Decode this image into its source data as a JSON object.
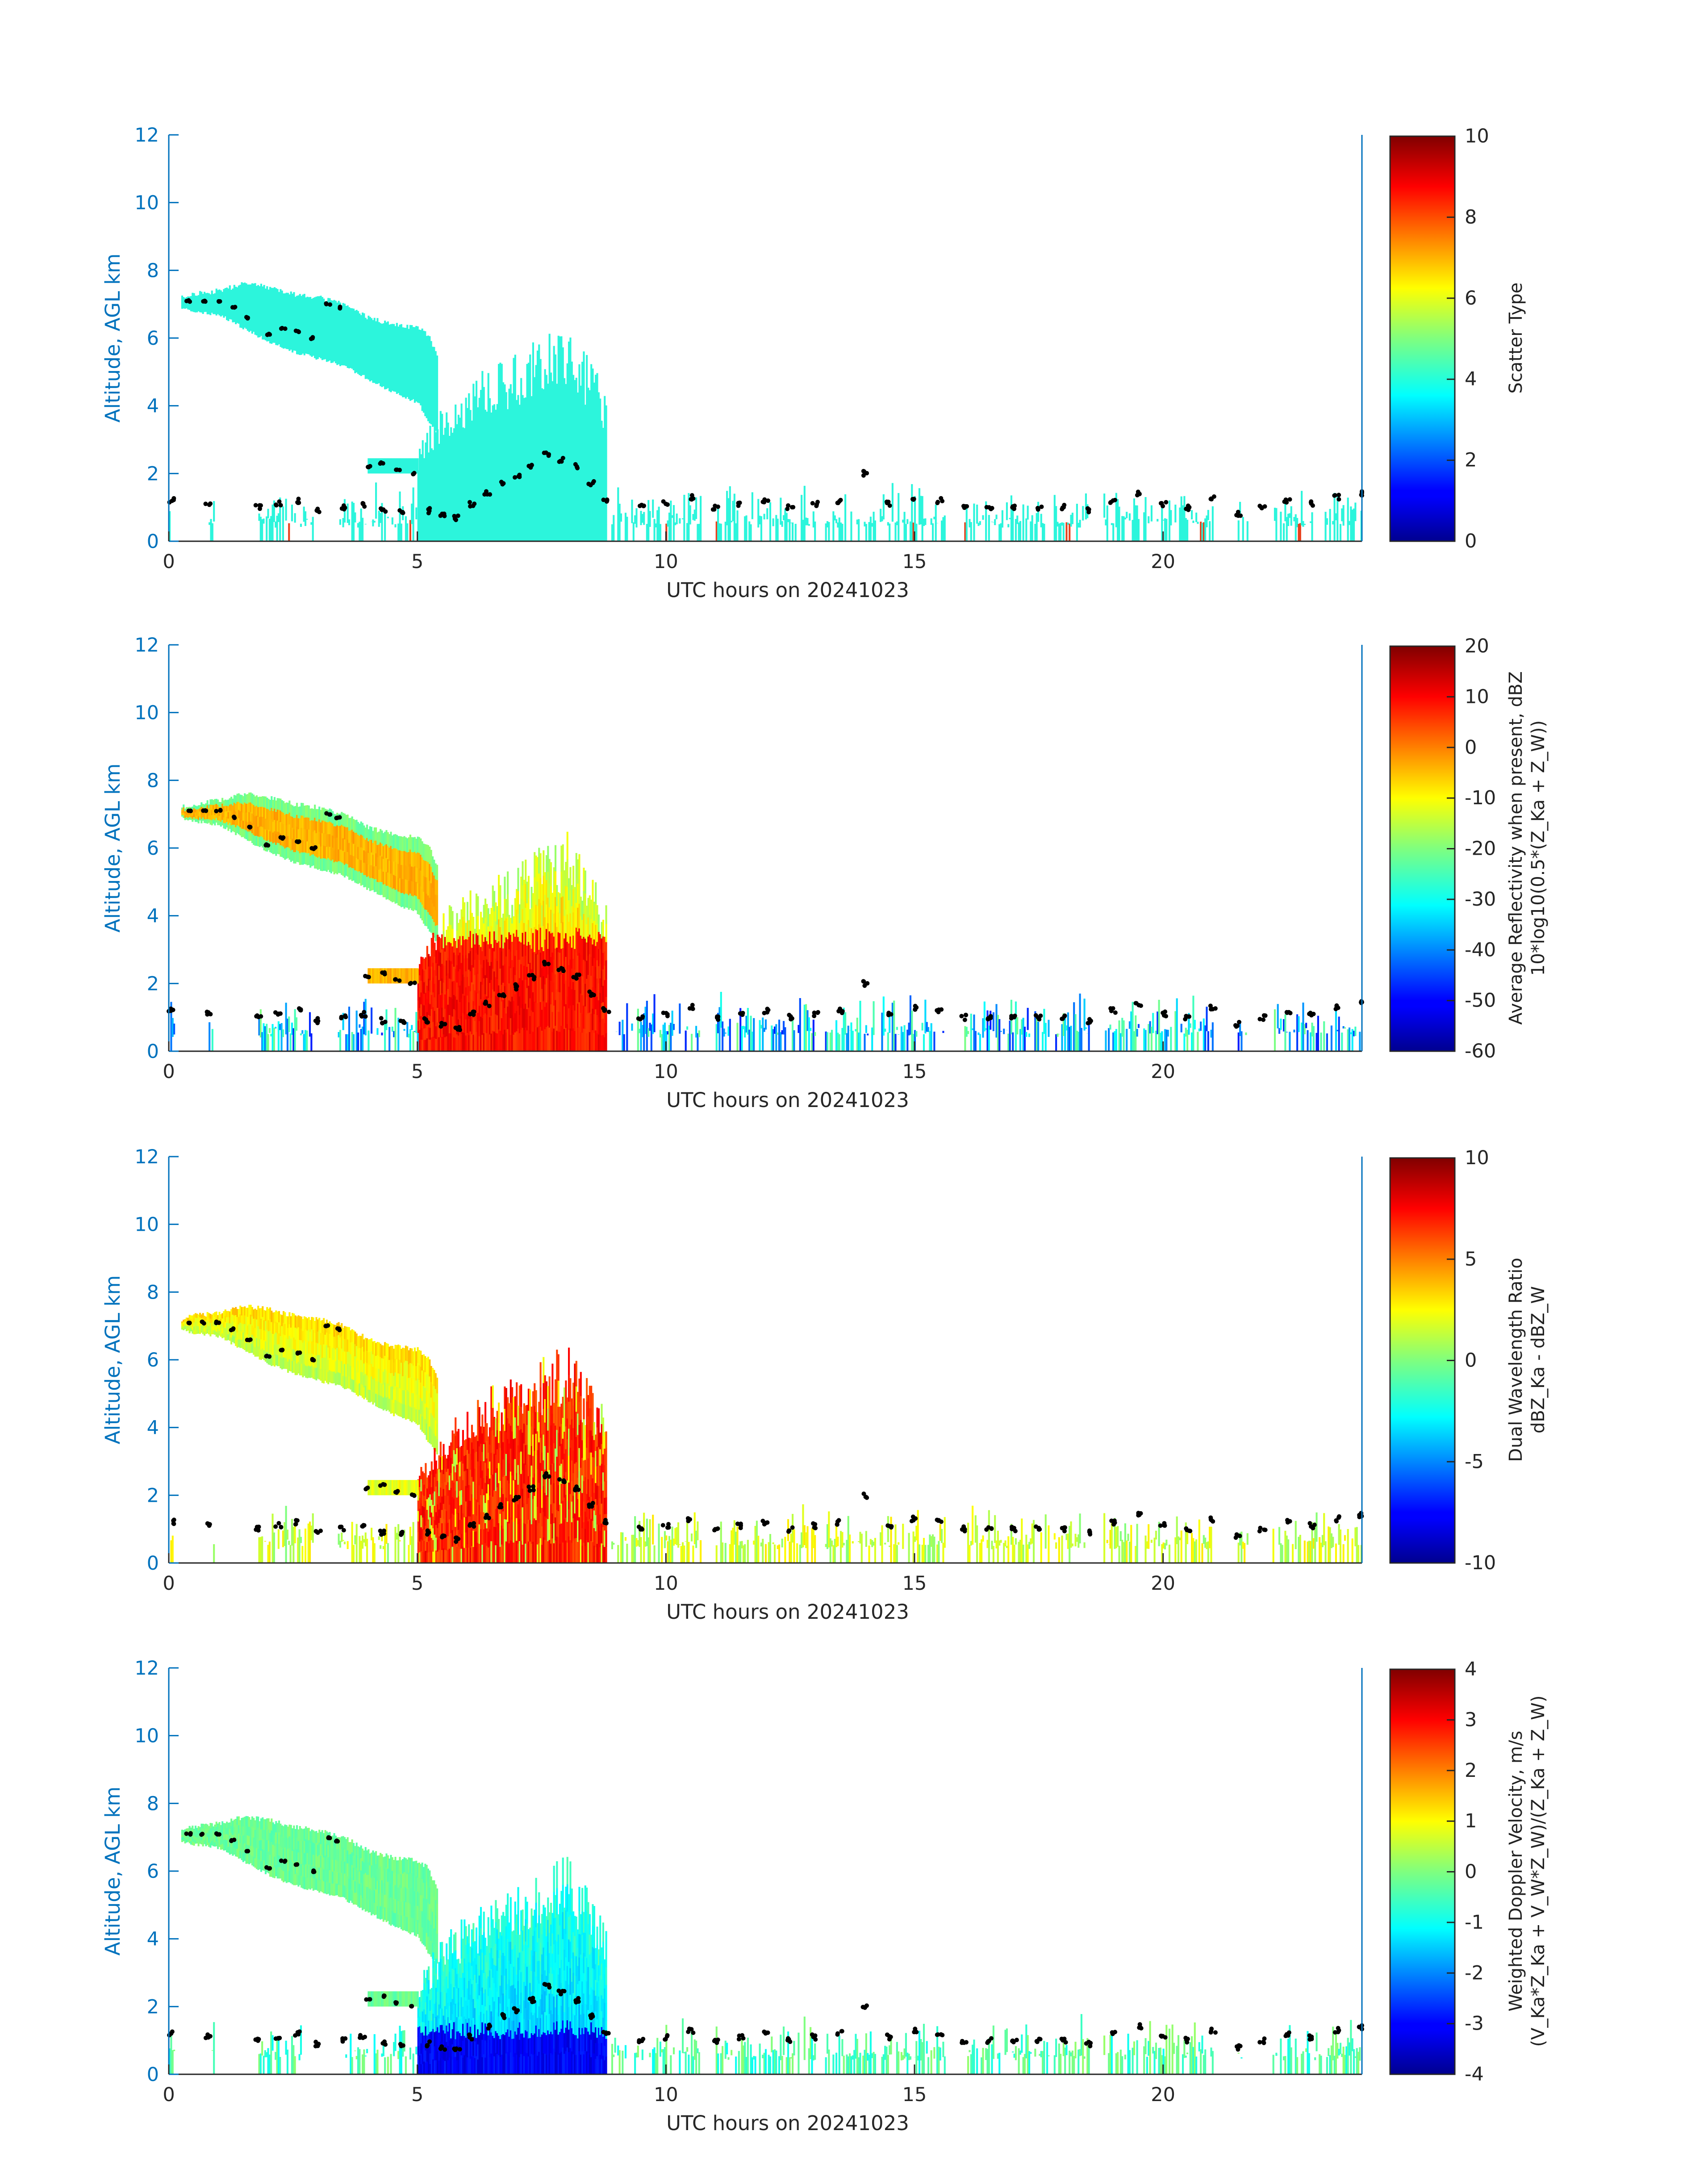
{
  "colors": {
    "axis": "#0072BD",
    "text": "#262626",
    "echo_cyan": "#2cf5dc",
    "markers": "#000000",
    "colormap": "jet"
  },
  "chart_data": [
    {
      "type": "heatmap",
      "panel": 1,
      "xlabel": "UTC hours on 20241023",
      "ylabel": "Altitude, AGL km",
      "xlim": [
        0,
        24
      ],
      "ylim": [
        0,
        12
      ],
      "xticks": [
        "0",
        "5",
        "10",
        "15",
        "20"
      ],
      "yticks": [
        "0",
        "2",
        "4",
        "6",
        "8",
        "10",
        "12"
      ],
      "colorbar": {
        "label": "Scatter Type",
        "label2": "",
        "range": [
          0,
          10
        ],
        "ticks": [
          "0",
          "2",
          "4",
          "6",
          "8",
          "10"
        ]
      },
      "field": "scatter_type"
    },
    {
      "type": "heatmap",
      "panel": 2,
      "xlabel": "UTC hours on 20241023",
      "ylabel": "Altitude, AGL km",
      "xlim": [
        0,
        24
      ],
      "ylim": [
        0,
        12
      ],
      "xticks": [
        "0",
        "5",
        "10",
        "15",
        "20"
      ],
      "yticks": [
        "0",
        "2",
        "4",
        "6",
        "8",
        "10",
        "12"
      ],
      "colorbar": {
        "label": "Average Reflectivity when present, dBZ",
        "label2": "10*log10(0.5*(Z_Ka + Z_W))",
        "range": [
          -60,
          20
        ],
        "ticks": [
          "-60",
          "-50",
          "-40",
          "-30",
          "-20",
          "-10",
          "0",
          "10",
          "20"
        ]
      },
      "field": "reflectivity"
    },
    {
      "type": "heatmap",
      "panel": 3,
      "xlabel": "UTC hours on 20241023",
      "ylabel": "Altitude, AGL km",
      "xlim": [
        0,
        24
      ],
      "ylim": [
        0,
        12
      ],
      "xticks": [
        "0",
        "5",
        "10",
        "15",
        "20"
      ],
      "yticks": [
        "0",
        "2",
        "4",
        "6",
        "8",
        "10",
        "12"
      ],
      "colorbar": {
        "label": "Dual Wavelength Ratio",
        "label2": "dBZ_Ka - dBZ_W",
        "range": [
          -10,
          10
        ],
        "ticks": [
          "-10",
          "-5",
          "0",
          "5",
          "10"
        ]
      },
      "field": "dwr"
    },
    {
      "type": "heatmap",
      "panel": 4,
      "xlabel": "UTC hours on 20241023",
      "ylabel": "Altitude, AGL km",
      "xlim": [
        0,
        24
      ],
      "ylim": [
        0,
        12
      ],
      "xticks": [
        "0",
        "5",
        "10",
        "15",
        "20"
      ],
      "yticks": [
        "0",
        "2",
        "4",
        "6",
        "8",
        "10",
        "12"
      ],
      "colorbar": {
        "label": "Weighted Doppler Velocity, m/s",
        "label2": "(V_Ka*Z_Ka + V_W*Z_W)/(Z_Ka + Z_W)",
        "range": [
          -4,
          4
        ],
        "ticks": [
          "-4",
          "-3",
          "-2",
          "-1",
          "0",
          "1",
          "2",
          "3",
          "4"
        ]
      },
      "field": "doppler"
    }
  ],
  "series_echo_regions_km": [
    {
      "name": "upper cloud",
      "x": [
        0.25,
        0.5,
        1.0,
        1.5,
        2.0,
        2.5,
        3.0,
        3.5,
        4.0,
        4.5,
        5.0,
        5.2,
        5.4
      ],
      "top": [
        7.2,
        7.3,
        7.4,
        7.6,
        7.5,
        7.3,
        7.2,
        7.0,
        6.6,
        6.4,
        6.3,
        6.1,
        5.4
      ],
      "bottom": [
        6.9,
        6.8,
        6.7,
        6.3,
        5.9,
        5.6,
        5.4,
        5.2,
        4.8,
        4.4,
        4.1,
        3.6,
        3.2
      ]
    },
    {
      "name": "precipitating column",
      "x": [
        5.0,
        5.5,
        6.0,
        6.5,
        7.0,
        7.5,
        8.0,
        8.5,
        8.8
      ],
      "top": [
        2.6,
        4.0,
        4.5,
        5.0,
        5.3,
        5.8,
        6.2,
        5.0,
        4.2
      ],
      "bottom": [
        0,
        0,
        0,
        0,
        0,
        0,
        0,
        0,
        0
      ]
    }
  ],
  "cloud_base_markers_km": {
    "x": [
      0.05,
      0.8,
      1.8,
      2.2,
      2.6,
      3.0,
      3.5,
      3.9,
      4.3,
      4.7,
      5.2,
      5.5,
      5.8,
      6.1,
      6.4,
      6.7,
      7.0,
      7.3,
      7.6,
      7.9,
      8.2,
      8.5,
      8.8,
      9.5,
      10.0,
      10.5,
      11.0,
      11.5,
      12.0,
      12.5,
      13.0,
      13.5,
      14.0,
      14.5,
      15.0,
      15.5,
      16.0,
      16.5,
      17.0,
      17.5,
      18.0,
      18.5,
      19.0,
      19.5,
      20.0,
      20.5,
      21.0,
      21.5,
      22.0,
      22.5,
      23.0,
      23.5,
      24.0
    ],
    "y": [
      1.2,
      1.1,
      1.0,
      1.1,
      1.2,
      0.9,
      1.0,
      1.1,
      0.9,
      0.9,
      0.9,
      0.8,
      0.7,
      1.1,
      1.4,
      1.7,
      1.9,
      2.2,
      2.6,
      2.4,
      2.2,
      1.7,
      1.2,
      1.0,
      1.1,
      1.3,
      1.0,
      1.1,
      1.2,
      1.0,
      1.1,
      1.2,
      2.0,
      1.1,
      1.3,
      1.2,
      1.0,
      1.0,
      1.0,
      1.0,
      1.0,
      0.9,
      1.2,
      1.4,
      1.1,
      1.0,
      1.3,
      0.8,
      1.0,
      1.2,
      1.1,
      1.3,
      1.4
    ]
  },
  "upper_markers_km": {
    "x": [
      0.4,
      0.7,
      1.0,
      1.3,
      1.6,
      2.0,
      2.3,
      2.6,
      2.9,
      3.2,
      3.4,
      4.0,
      4.3,
      4.6,
      4.9
    ],
    "y": [
      7.1,
      7.1,
      7.1,
      6.9,
      6.6,
      6.1,
      6.3,
      6.2,
      6.0,
      7.0,
      6.9,
      2.2,
      2.3,
      2.1,
      2.0
    ]
  }
}
